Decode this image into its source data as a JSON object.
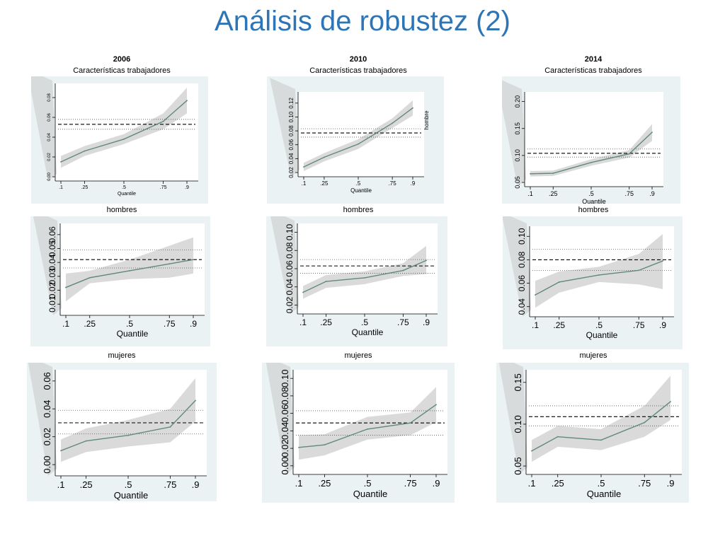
{
  "slide": {
    "title": "Análisis de robustez (2)"
  },
  "colors": {
    "title": "#2E75B6",
    "panel_bg": "#EAF2F3",
    "line": "#5F8A76",
    "band": "#D6D6D6",
    "ref": "#000000"
  },
  "columns": [
    {
      "year": "2006",
      "subtitle": "Características trabajadores"
    },
    {
      "year": "2010",
      "subtitle": "Características trabajadores"
    },
    {
      "year": "2014",
      "subtitle": "Características trabajadores"
    }
  ],
  "row_labels": [
    "hombres",
    "mujeres"
  ],
  "chart_data": [
    {
      "type": "line",
      "year": "2006",
      "panel": "Características trabajadores",
      "x": [
        0.1,
        0.25,
        0.5,
        0.75,
        0.9
      ],
      "xticklabels": [
        ".1",
        ".25",
        ".5",
        ".75",
        ".9"
      ],
      "xlabel": "Quantile",
      "ylim": [
        0.0,
        0.09
      ],
      "yticks": [
        0.0,
        0.02,
        0.04,
        0.06,
        0.08
      ],
      "yticklabels": [
        "0.00",
        "0.02",
        "0.04",
        "0.06",
        "0.08"
      ],
      "series": [
        {
          "values": [
            0.015,
            0.026,
            0.038,
            0.056,
            0.077
          ]
        }
      ],
      "ci_lower": [
        0.009,
        0.021,
        0.033,
        0.048,
        0.064
      ],
      "ci_upper": [
        0.021,
        0.031,
        0.043,
        0.064,
        0.09
      ],
      "ols": 0.053,
      "ols_ci": [
        0.048,
        0.058
      ]
    },
    {
      "type": "line",
      "year": "2010",
      "panel": "Características trabajadores",
      "x": [
        0.1,
        0.25,
        0.5,
        0.75,
        0.9
      ],
      "xticklabels": [
        ".1",
        ".25",
        ".5",
        ".75",
        ".9"
      ],
      "xlabel": "Quantile",
      "ylim": [
        0.02,
        0.13
      ],
      "yticks": [
        0.02,
        0.04,
        0.06,
        0.08,
        0.1,
        0.12
      ],
      "yticklabels": [
        "0.02",
        "0.04",
        "0.06",
        "0.08",
        "0.10",
        "0.12"
      ],
      "series": [
        {
          "values": [
            0.028,
            0.042,
            0.061,
            0.091,
            0.113
          ]
        }
      ],
      "ci_lower": [
        0.022,
        0.036,
        0.054,
        0.084,
        0.102
      ],
      "ci_upper": [
        0.034,
        0.048,
        0.068,
        0.098,
        0.124
      ],
      "ols": 0.077,
      "ols_ci": [
        0.071,
        0.083
      ],
      "right_label": "hombre"
    },
    {
      "type": "line",
      "year": "2014",
      "panel": "Características trabajadores",
      "x": [
        0.1,
        0.25,
        0.5,
        0.75,
        0.9
      ],
      "xticklabels": [
        ".1",
        ".25",
        ".5",
        ".75",
        ".9"
      ],
      "xlabel": "Quantile",
      "ylim": [
        0.05,
        0.21
      ],
      "yticks": [
        0.05,
        0.1,
        0.15,
        0.2
      ],
      "yticklabels": [
        "0.05",
        "0.10",
        "0.15",
        "0.20"
      ],
      "series": [
        {
          "values": [
            0.066,
            0.067,
            0.087,
            0.103,
            0.143
          ]
        }
      ],
      "ci_lower": [
        0.061,
        0.062,
        0.081,
        0.096,
        0.127
      ],
      "ci_upper": [
        0.071,
        0.072,
        0.093,
        0.11,
        0.158
      ],
      "ols": 0.104,
      "ols_ci": [
        0.097,
        0.112
      ]
    },
    {
      "type": "line",
      "year": "2006",
      "panel": "hombres",
      "x": [
        0.1,
        0.25,
        0.5,
        0.75,
        0.9
      ],
      "xticklabels": [
        ".1",
        ".25",
        ".5",
        ".75",
        ".9"
      ],
      "xlabel": "Quantile",
      "ylim": [
        0.005,
        0.065
      ],
      "yticks": [
        0.01,
        0.02,
        0.03,
        0.04,
        0.05,
        0.06
      ],
      "yticklabels": [
        "0.01",
        "0.02",
        "0.03",
        "0.04",
        "0.05",
        "0.06"
      ],
      "series": [
        {
          "values": [
            0.022,
            0.029,
            0.034,
            0.039,
            0.042
          ]
        }
      ],
      "ci_lower": [
        0.012,
        0.025,
        0.028,
        0.029,
        0.032
      ],
      "ci_upper": [
        0.032,
        0.034,
        0.042,
        0.052,
        0.058
      ],
      "ols": 0.042,
      "ols_ci": [
        0.036,
        0.049
      ]
    },
    {
      "type": "line",
      "year": "2010",
      "panel": "hombres",
      "x": [
        0.1,
        0.25,
        0.5,
        0.75,
        0.9
      ],
      "xticklabels": [
        ".1",
        ".25",
        ".5",
        ".75",
        ".9"
      ],
      "xlabel": "Quantile",
      "ylim": [
        0.015,
        0.105
      ],
      "yticks": [
        0.02,
        0.04,
        0.06,
        0.08,
        0.1
      ],
      "yticklabels": [
        "0.02",
        "0.04",
        "0.06",
        "0.08",
        "0.10"
      ],
      "series": [
        {
          "values": [
            0.034,
            0.046,
            0.05,
            0.058,
            0.069
          ]
        }
      ],
      "ci_lower": [
        0.027,
        0.039,
        0.043,
        0.052,
        0.054
      ],
      "ci_upper": [
        0.041,
        0.053,
        0.057,
        0.066,
        0.085
      ],
      "ols": 0.063,
      "ols_ci": [
        0.055,
        0.07
      ]
    },
    {
      "type": "line",
      "year": "2014",
      "panel": "hombres",
      "x": [
        0.1,
        0.25,
        0.5,
        0.75,
        0.9
      ],
      "xticklabels": [
        ".1",
        ".25",
        ".5",
        ".75",
        ".9"
      ],
      "xlabel": "Quantile",
      "ylim": [
        0.035,
        0.105
      ],
      "yticks": [
        0.04,
        0.06,
        0.08,
        0.1
      ],
      "yticklabels": [
        "0.04",
        "0.06",
        "0.08",
        "0.10"
      ],
      "series": [
        {
          "values": [
            0.05,
            0.061,
            0.067,
            0.071,
            0.079
          ]
        }
      ],
      "ci_lower": [
        0.039,
        0.052,
        0.061,
        0.059,
        0.055
      ],
      "ci_upper": [
        0.062,
        0.07,
        0.074,
        0.085,
        0.102
      ],
      "ols": 0.08,
      "ols_ci": [
        0.071,
        0.089
      ]
    },
    {
      "type": "line",
      "year": "2006",
      "panel": "mujeres",
      "x": [
        0.1,
        0.25,
        0.5,
        0.75,
        0.9
      ],
      "xticklabels": [
        ".1",
        ".25",
        ".5",
        ".75",
        ".9"
      ],
      "xlabel": "Quantile",
      "ylim": [
        -0.005,
        0.065
      ],
      "yticks": [
        0.0,
        0.02,
        0.04,
        0.06
      ],
      "yticklabels": [
        "0.00",
        "0.02",
        "0.04",
        "0.06"
      ],
      "series": [
        {
          "values": [
            0.01,
            0.017,
            0.021,
            0.027,
            0.046
          ]
        }
      ],
      "ci_lower": [
        0.002,
        0.009,
        0.013,
        0.016,
        0.031
      ],
      "ci_upper": [
        0.018,
        0.026,
        0.032,
        0.04,
        0.062
      ],
      "ols": 0.03,
      "ols_ci": [
        0.022,
        0.039
      ]
    },
    {
      "type": "line",
      "year": "2010",
      "panel": "mujeres",
      "x": [
        0.1,
        0.25,
        0.5,
        0.75,
        0.9
      ],
      "xticklabels": [
        ".1",
        ".25",
        ".5",
        ".75",
        ".9"
      ],
      "xlabel": "Quantile",
      "ylim": [
        -0.005,
        0.105
      ],
      "yticks": [
        0.0,
        0.02,
        0.04,
        0.06,
        0.08,
        0.1
      ],
      "yticklabels": [
        "0.00",
        "0.02",
        "0.04",
        "0.06",
        "0.08",
        "0.10"
      ],
      "series": [
        {
          "values": [
            0.021,
            0.024,
            0.042,
            0.049,
            0.07
          ]
        }
      ],
      "ci_lower": [
        0.007,
        0.012,
        0.03,
        0.035,
        0.05
      ],
      "ci_upper": [
        0.035,
        0.036,
        0.056,
        0.061,
        0.09
      ],
      "ols": 0.049,
      "ols_ci": [
        0.035,
        0.063
      ]
    },
    {
      "type": "line",
      "year": "2014",
      "panel": "mujeres",
      "x": [
        0.1,
        0.25,
        0.5,
        0.75,
        0.9
      ],
      "xticklabels": [
        ".1",
        ".25",
        ".5",
        ".75",
        ".9"
      ],
      "xlabel": "Quantile",
      "ylim": [
        0.045,
        0.16
      ],
      "yticks": [
        0.05,
        0.1,
        0.15
      ],
      "yticklabels": [
        "0.05",
        "0.10",
        "0.15"
      ],
      "series": [
        {
          "values": [
            0.068,
            0.085,
            0.081,
            0.102,
            0.127
          ]
        }
      ],
      "ci_lower": [
        0.055,
        0.073,
        0.069,
        0.085,
        0.105
      ],
      "ci_upper": [
        0.081,
        0.098,
        0.094,
        0.122,
        0.158
      ],
      "ols": 0.109,
      "ols_ci": [
        0.098,
        0.122
      ]
    }
  ]
}
